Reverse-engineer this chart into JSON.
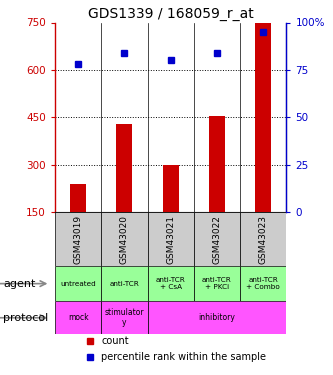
{
  "title": "GDS1339 / 168059_r_at",
  "samples": [
    "GSM43019",
    "GSM43020",
    "GSM43021",
    "GSM43022",
    "GSM43023"
  ],
  "counts": [
    240,
    430,
    300,
    455,
    750
  ],
  "percentiles": [
    78,
    84,
    80,
    84,
    95
  ],
  "ylim_left": [
    150,
    750
  ],
  "ylim_right": [
    0,
    100
  ],
  "yticks_left": [
    150,
    300,
    450,
    600,
    750
  ],
  "yticks_right": [
    0,
    25,
    50,
    75,
    100
  ],
  "ytick_labels_left": [
    "150",
    "300",
    "450",
    "600",
    "750"
  ],
  "ytick_labels_right": [
    "0",
    "25",
    "50",
    "75",
    "100%"
  ],
  "bar_color": "#cc0000",
  "dot_color": "#0000cc",
  "agent_labels": [
    "untreated",
    "anti-TCR",
    "anti-TCR\n+ CsA",
    "anti-TCR\n+ PKCi",
    "anti-TCR\n+ Combo"
  ],
  "agent_bg": "#99ff99",
  "sample_box_color": "#cccccc",
  "legend_count_color": "#cc0000",
  "legend_pct_color": "#0000cc",
  "protocol_bg": "#ff55ff",
  "background_color": "#ffffff",
  "title_fontsize": 10,
  "tick_fontsize": 7.5,
  "label_fontsize": 8,
  "sample_fontsize": 6.5
}
